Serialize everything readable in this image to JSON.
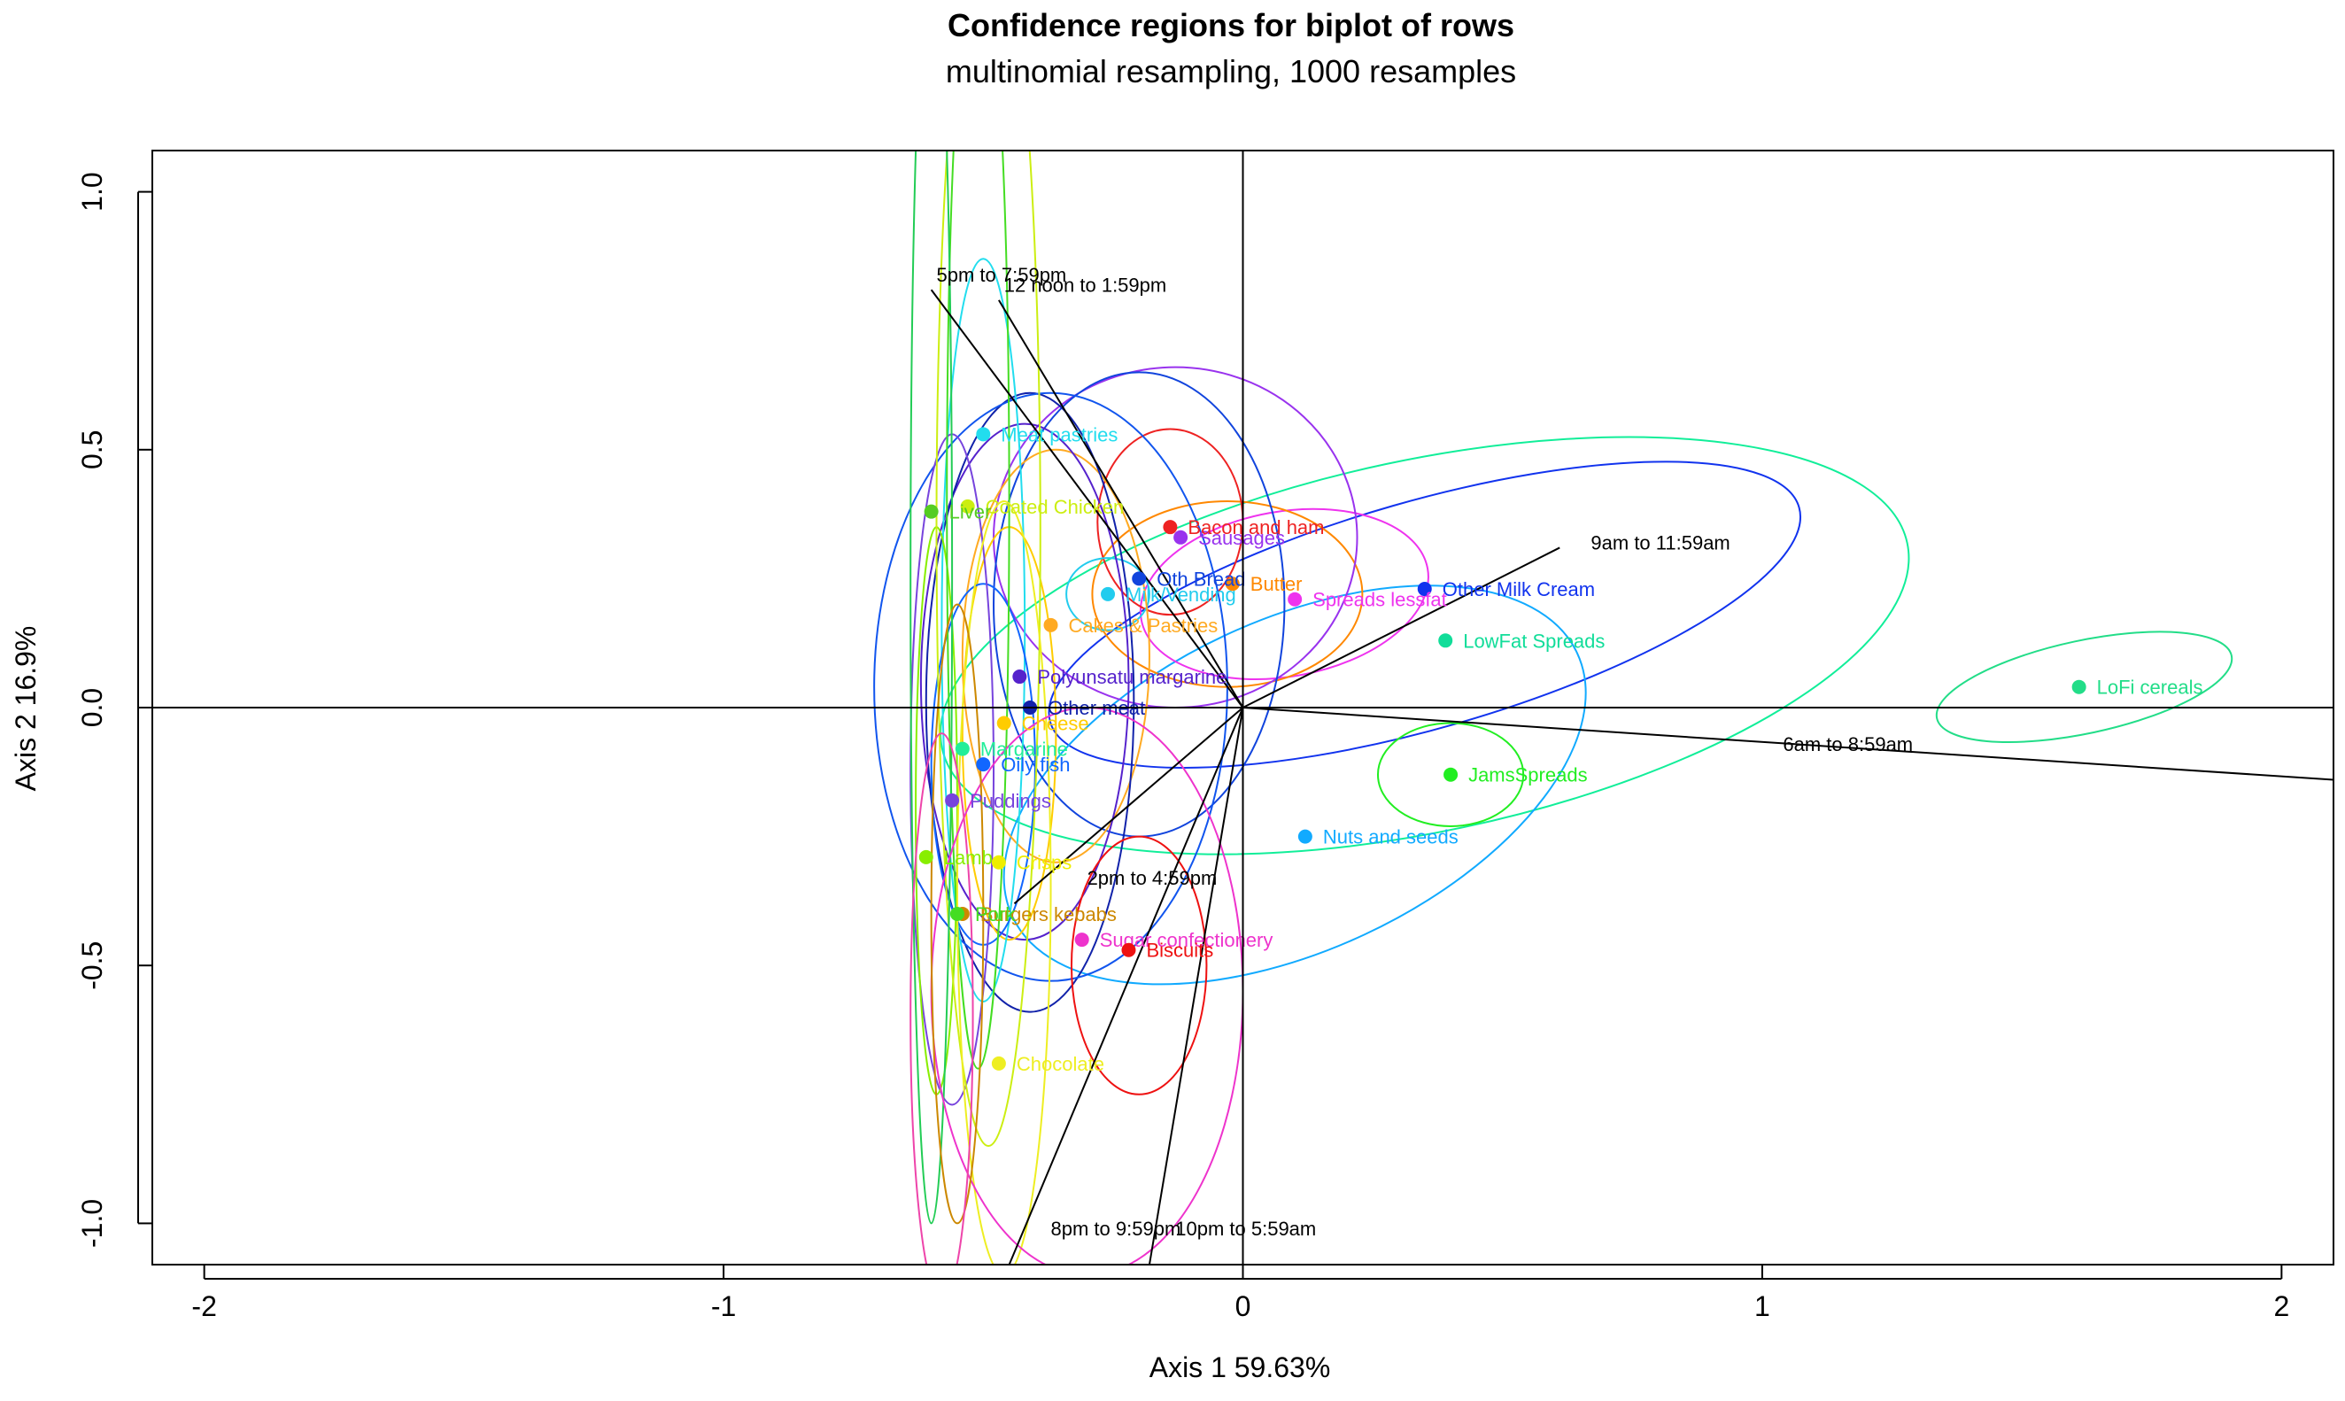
{
  "chart_data": {
    "type": "scatter",
    "title": "Confidence regions for biplot of rows",
    "subtitle": "multinomial resampling,  1000 resamples",
    "xlabel": "Axis 1    59.63%",
    "ylabel": "Axis 2    16.9%",
    "xlim": [
      -2.1,
      2.1
    ],
    "ylim": [
      -1.08,
      1.08
    ],
    "xticks": [
      -2,
      -1,
      0,
      1,
      2
    ],
    "yticks": [
      -1.0,
      -0.5,
      0.0,
      0.5,
      1.0
    ],
    "xtick_labels": [
      "-2",
      "-1",
      "0",
      "1",
      "2"
    ],
    "ytick_labels": [
      "-1.0",
      "-0.5",
      "0.0",
      "0.5",
      "1.0"
    ],
    "grid": false,
    "reference_lines": [
      0,
      0
    ],
    "points": [
      {
        "label": "LoFi cereals",
        "x": 1.61,
        "y": 0.04,
        "color": "#22dd88"
      },
      {
        "label": "Other Milk Cream",
        "x": 0.35,
        "y": 0.23,
        "color": "#1133ee"
      },
      {
        "label": "LowFat Spreads",
        "x": 0.39,
        "y": 0.13,
        "color": "#11dd99"
      },
      {
        "label": "JamsSpreads",
        "x": 0.4,
        "y": -0.13,
        "color": "#22ee22"
      },
      {
        "label": "Nuts and seeds",
        "x": 0.12,
        "y": -0.25,
        "color": "#11aaff"
      },
      {
        "label": "Spreads lessfat",
        "x": 0.1,
        "y": 0.21,
        "color": "#ee33ee"
      },
      {
        "label": "Butter",
        "x": -0.02,
        "y": 0.24,
        "color": "#ff8800"
      },
      {
        "label": "Sausages",
        "x": -0.12,
        "y": 0.33,
        "color": "#9933ee"
      },
      {
        "label": "Bacon and ham",
        "x": -0.14,
        "y": 0.35,
        "color": "#ee2222"
      },
      {
        "label": "Oth Bread",
        "x": -0.2,
        "y": 0.25,
        "color": "#1144dd"
      },
      {
        "label": "Milk/Vending",
        "x": -0.26,
        "y": 0.22,
        "color": "#22ccee"
      },
      {
        "label": "Cakes & Pastries",
        "x": -0.37,
        "y": 0.16,
        "color": "#ffaa22"
      },
      {
        "label": "Polyunsatu margarine",
        "x": -0.43,
        "y": 0.06,
        "color": "#5522cc"
      },
      {
        "label": "Other meat",
        "x": -0.41,
        "y": 0.0,
        "color": "#1122aa"
      },
      {
        "label": "Cheese",
        "x": -0.46,
        "y": -0.03,
        "color": "#ffcc00"
      },
      {
        "label": "Margarine",
        "x": -0.54,
        "y": -0.08,
        "color": "#22ee99"
      },
      {
        "label": "Oily fish",
        "x": -0.5,
        "y": -0.11,
        "color": "#1166ff"
      },
      {
        "label": "Puddings",
        "x": -0.56,
        "y": -0.18,
        "color": "#7744dd"
      },
      {
        "label": "Lamb",
        "x": -0.61,
        "y": -0.29,
        "color": "#88ee00"
      },
      {
        "label": "Crisps",
        "x": -0.47,
        "y": -0.3,
        "color": "#eeee00"
      },
      {
        "label": "Burgers kebabs",
        "x": -0.54,
        "y": -0.4,
        "color": "#cc8800"
      },
      {
        "label": "Pork",
        "x": -0.55,
        "y": -0.4,
        "color": "#44dd22"
      },
      {
        "label": "Sugar confectionery",
        "x": -0.31,
        "y": -0.45,
        "color": "#ee33cc"
      },
      {
        "label": "Biscuits",
        "x": -0.22,
        "y": -0.47,
        "color": "#ee1111"
      },
      {
        "label": "Chocolate",
        "x": -0.47,
        "y": -0.69,
        "color": "#eeee22"
      },
      {
        "label": "Meat pastries",
        "x": -0.5,
        "y": 0.53,
        "color": "#22ddee"
      },
      {
        "label": "Coated Chicken",
        "x": -0.53,
        "y": 0.39,
        "color": "#ccee11"
      },
      {
        "label": "Liver",
        "x": -0.6,
        "y": 0.38,
        "color": "#55cc22"
      }
    ],
    "ellipses": [
      {
        "x": 1.62,
        "y": 0.04,
        "rx": 0.29,
        "ry": 0.09,
        "rot": -12,
        "color": "#22dd88"
      },
      {
        "x": 0.35,
        "y": 0.18,
        "rx": 0.75,
        "ry": 0.22,
        "rot": -16,
        "color": "#1133ee"
      },
      {
        "x": 0.35,
        "y": 0.12,
        "rx": 0.95,
        "ry": 0.36,
        "rot": -12,
        "color": "#11ee99"
      },
      {
        "x": 0.4,
        "y": -0.13,
        "rx": 0.14,
        "ry": 0.1,
        "rot": 0,
        "color": "#22ee22"
      },
      {
        "x": 0.1,
        "y": -0.15,
        "rx": 0.6,
        "ry": 0.32,
        "rot": -25,
        "color": "#11aaff"
      },
      {
        "x": 0.08,
        "y": 0.22,
        "rx": 0.28,
        "ry": 0.16,
        "rot": -10,
        "color": "#ee33ee"
      },
      {
        "x": -0.03,
        "y": 0.22,
        "rx": 0.26,
        "ry": 0.18,
        "rot": 0,
        "color": "#ff8800"
      },
      {
        "x": -0.13,
        "y": 0.33,
        "rx": 0.35,
        "ry": 0.33,
        "rot": 0,
        "color": "#9933ee"
      },
      {
        "x": -0.14,
        "y": 0.36,
        "rx": 0.14,
        "ry": 0.18,
        "rot": 0,
        "color": "#ee2222"
      },
      {
        "x": -0.2,
        "y": 0.2,
        "rx": 0.28,
        "ry": 0.45,
        "rot": 0,
        "color": "#1144dd"
      },
      {
        "x": -0.26,
        "y": 0.22,
        "rx": 0.08,
        "ry": 0.07,
        "rot": 0,
        "color": "#22ccee"
      },
      {
        "x": -0.36,
        "y": 0.1,
        "rx": 0.18,
        "ry": 0.4,
        "rot": 0,
        "color": "#ffaa22"
      },
      {
        "x": -0.42,
        "y": 0.05,
        "rx": 0.2,
        "ry": 0.5,
        "rot": 0,
        "color": "#5522cc"
      },
      {
        "x": -0.41,
        "y": 0.01,
        "rx": 0.2,
        "ry": 0.6,
        "rot": 0,
        "color": "#1122aa"
      },
      {
        "x": -0.37,
        "y": 0.04,
        "rx": 0.34,
        "ry": 0.57,
        "rot": 0,
        "color": "#1155ee"
      },
      {
        "x": -0.45,
        "y": -0.05,
        "rx": 0.09,
        "ry": 0.4,
        "rot": 0,
        "color": "#ffcc00"
      },
      {
        "x": -0.5,
        "y": 0.15,
        "rx": 0.08,
        "ry": 0.72,
        "rot": 0,
        "color": "#22ddee"
      },
      {
        "x": -0.5,
        "y": -0.11,
        "rx": 0.1,
        "ry": 0.35,
        "rot": 0,
        "color": "#1166ff"
      },
      {
        "x": -0.56,
        "y": -0.12,
        "rx": 0.08,
        "ry": 0.65,
        "rot": 0,
        "color": "#7744dd"
      },
      {
        "x": -0.59,
        "y": -0.2,
        "rx": 0.04,
        "ry": 0.55,
        "rot": 0,
        "color": "#88ee00"
      },
      {
        "x": -0.49,
        "y": 0.35,
        "rx": 0.1,
        "ry": 1.2,
        "rot": 0,
        "color": "#ccee11"
      },
      {
        "x": -0.51,
        "y": 0.4,
        "rx": 0.06,
        "ry": 1.1,
        "rot": 0,
        "color": "#44dd22"
      },
      {
        "x": -0.6,
        "y": 0.25,
        "rx": 0.04,
        "ry": 1.25,
        "rot": 0,
        "color": "#22cc55"
      },
      {
        "x": -0.46,
        "y": -0.35,
        "rx": 0.09,
        "ry": 0.75,
        "rot": 0,
        "color": "#eeee22"
      },
      {
        "x": -0.2,
        "y": -0.5,
        "rx": 0.13,
        "ry": 0.25,
        "rot": 0,
        "color": "#ee1111"
      },
      {
        "x": -0.3,
        "y": -0.55,
        "rx": 0.3,
        "ry": 0.55,
        "rot": 0,
        "color": "#ee33cc"
      },
      {
        "x": -0.55,
        "y": -0.4,
        "rx": 0.05,
        "ry": 0.6,
        "rot": 0,
        "color": "#cc8800"
      },
      {
        "x": -0.58,
        "y": -0.6,
        "rx": 0.06,
        "ry": 0.55,
        "rot": 0,
        "color": "#ee44aa"
      }
    ],
    "biplot_arrows": [
      {
        "label": "6am to 8:59am",
        "x": 2.1,
        "y": -0.14,
        "lx": 1.04,
        "ly": -0.07
      },
      {
        "label": "9am to 11:59am",
        "x": 0.61,
        "y": 0.31,
        "lx": 0.67,
        "ly": 0.32
      },
      {
        "label": "12 noon to 1:59pm",
        "x": -0.47,
        "y": 0.79,
        "lx": -0.46,
        "ly": 0.82
      },
      {
        "label": "5pm to 7:59pm",
        "x": -0.6,
        "y": 0.81,
        "lx": -0.59,
        "ly": 0.84
      },
      {
        "label": "2pm to 4:59pm",
        "x": -0.44,
        "y": -0.38,
        "lx": -0.3,
        "ly": -0.33
      },
      {
        "label": "8pm to 9:59pm",
        "x": -0.45,
        "y": -1.08,
        "lx": -0.37,
        "ly": -1.01
      },
      {
        "label": "10pm to 5:59am",
        "x": -0.18,
        "y": -1.08,
        "lx": -0.13,
        "ly": -1.01
      }
    ]
  }
}
